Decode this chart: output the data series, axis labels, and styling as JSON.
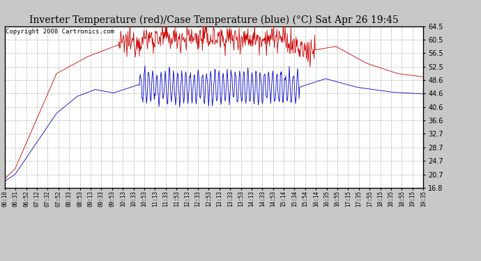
{
  "title": "Inverter Temperature (red)/Case Temperature (blue) (°C) Sat Apr 26 19:45",
  "copyright": "Copyright 2008 Cartronics.com",
  "background_color": "#c8c8c8",
  "plot_bg_color": "#ffffff",
  "yticks": [
    16.8,
    20.7,
    24.7,
    28.7,
    32.7,
    36.6,
    40.6,
    44.6,
    48.6,
    52.5,
    56.5,
    60.5,
    64.5
  ],
  "ymin": 16.8,
  "ymax": 64.5,
  "xtick_labels": [
    "06:10",
    "06:31",
    "06:52",
    "07:12",
    "07:32",
    "07:52",
    "08:33",
    "08:53",
    "09:13",
    "09:33",
    "09:53",
    "10:13",
    "10:33",
    "10:53",
    "11:13",
    "11:33",
    "11:53",
    "12:13",
    "12:33",
    "12:53",
    "13:13",
    "13:33",
    "13:53",
    "14:13",
    "14:33",
    "14:53",
    "15:14",
    "15:34",
    "15:54",
    "16:14",
    "16:35",
    "16:55",
    "17:15",
    "17:35",
    "17:55",
    "18:15",
    "18:35",
    "18:55",
    "19:15",
    "19:35"
  ],
  "red_color": "#cc0000",
  "blue_color": "#0000cc",
  "grid_color": "#aaaaaa",
  "title_fontsize": 10,
  "copyright_fontsize": 6.5
}
